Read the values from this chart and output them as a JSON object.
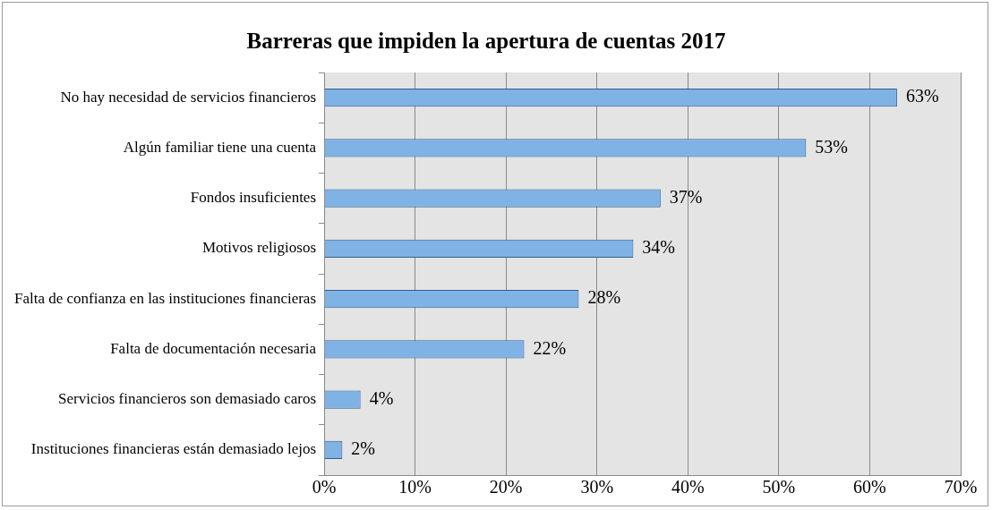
{
  "chart_data": {
    "type": "bar",
    "orientation": "horizontal",
    "title": "Barreras que impiden la apertura de cuentas 2017",
    "categories": [
      "No hay necesidad de servicios financieros",
      "Algún familiar tiene una cuenta",
      "Fondos insuficientes",
      "Motivos religiosos",
      "Falta de confianza en las instituciones financieras",
      "Falta de documentación necesaria",
      "Servicios financieros son demasiado caros",
      "Instituciones financieras están demasiado lejos"
    ],
    "values": [
      63,
      53,
      37,
      34,
      28,
      22,
      4,
      2
    ],
    "value_labels": [
      "63%",
      "53%",
      "37%",
      "34%",
      "28%",
      "22%",
      "4%",
      "2%"
    ],
    "color": "#7fb2e5",
    "xlim": [
      0,
      70
    ],
    "xticks": [
      {
        "value": 0,
        "label": "0%"
      },
      {
        "value": 10,
        "label": "10%"
      },
      {
        "value": 20,
        "label": "20%"
      },
      {
        "value": 30,
        "label": "30%"
      },
      {
        "value": 40,
        "label": "40%"
      },
      {
        "value": 50,
        "label": "50%"
      },
      {
        "value": 60,
        "label": "60%"
      },
      {
        "value": 70,
        "label": "70%"
      }
    ],
    "grid": "x",
    "legend": false
  }
}
